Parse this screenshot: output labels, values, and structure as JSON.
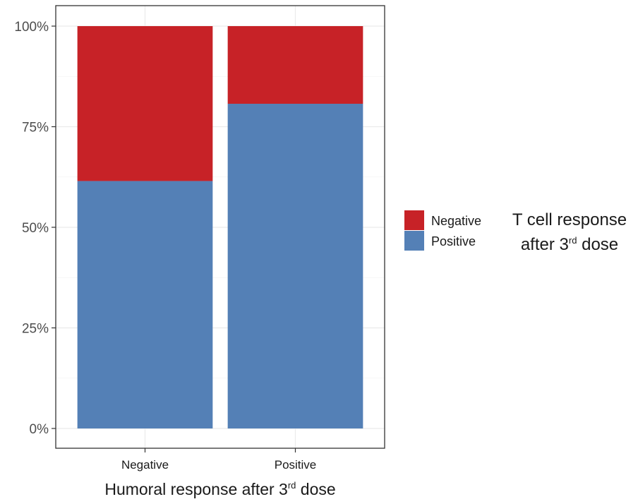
{
  "chart_data": {
    "type": "bar",
    "stacked": true,
    "percent_scale": true,
    "categories": [
      "Negative",
      "Positive"
    ],
    "series": [
      {
        "name": "Positive",
        "color": "#5480b6",
        "values": [
          61.5,
          80.7
        ]
      },
      {
        "name": "Negative",
        "color": "#c72227",
        "values": [
          38.5,
          19.3
        ]
      }
    ],
    "ylim": [
      0,
      100
    ],
    "yticks": [
      "0%",
      "25%",
      "50%",
      "75%",
      "100%"
    ],
    "xlabel": {
      "main": "Humoral response after 3",
      "sup": "rd",
      "suffix": " dose"
    },
    "grid": true,
    "legend": {
      "position": "right",
      "title_line1": "T cell response",
      "title_line2": {
        "main": "after 3",
        "sup": "rd",
        "suffix": " dose"
      },
      "items": [
        {
          "label": "Negative",
          "color": "#c72227"
        },
        {
          "label": "Positive",
          "color": "#5480b6"
        }
      ]
    }
  }
}
